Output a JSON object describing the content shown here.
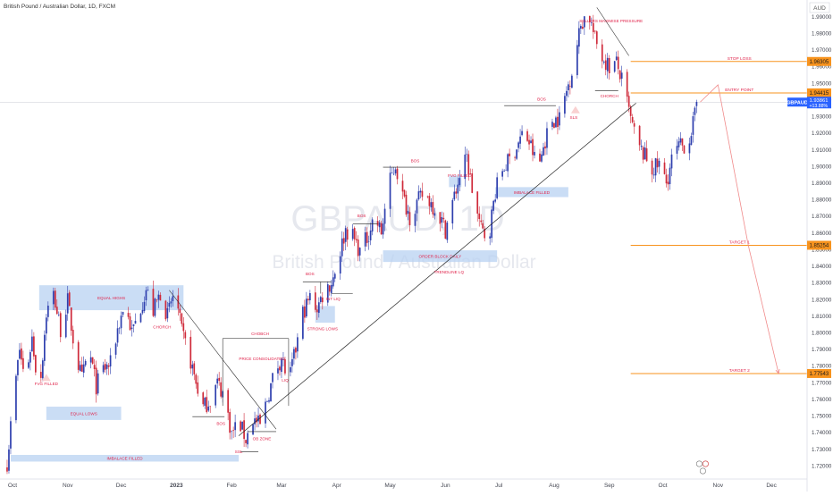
{
  "header": {
    "title": "British Pound / Australian Dollar, 1D, FXCM"
  },
  "watermark": {
    "symbol": "GBPAUD, 1D",
    "name": "British Pound / Australian Dollar"
  },
  "colors": {
    "up": "#2e3fae",
    "down": "#cf2a3a",
    "box": "#b8d2f2",
    "level": "#f7931e",
    "annot": "#e0244b",
    "projection": "#f08a8a",
    "priceTag": "#2962ff"
  },
  "chart_data": {
    "type": "candlestick",
    "title": "British Pound / Australian Dollar, 1D, FXCM",
    "currency": "AUD",
    "ylim": [
      1.712,
      2.0
    ],
    "y_ticks": [
      "1.72000",
      "1.73000",
      "1.74000",
      "1.75000",
      "1.76000",
      "1.77000",
      "1.78000",
      "1.79000",
      "1.80000",
      "1.81000",
      "1.82000",
      "1.83000",
      "1.84000",
      "1.85000",
      "1.86000",
      "1.87000",
      "1.88000",
      "1.89000",
      "1.90000",
      "1.91000",
      "1.92000",
      "1.93000",
      "1.94000",
      "1.95000",
      "1.96000",
      "1.97000",
      "1.98000",
      "1.99000"
    ],
    "x_ticks": [
      "Oct",
      "Nov",
      "Dec",
      "2023",
      "Feb",
      "Mar",
      "Apr",
      "May",
      "Jun",
      "Jul",
      "Aug",
      "Sep",
      "Oct",
      "Nov",
      "Dec"
    ],
    "current_price": {
      "symbol": "GBPAUD",
      "value": "1.93861",
      "change": "+13.88%"
    },
    "price_path": [
      [
        "2022-09-28",
        1.722
      ],
      [
        "2022-10-01",
        1.755
      ],
      [
        "2022-10-05",
        1.79
      ],
      [
        "2022-10-08",
        1.771
      ],
      [
        "2022-10-12",
        1.797
      ],
      [
        "2022-10-16",
        1.762
      ],
      [
        "2022-10-20",
        1.812
      ],
      [
        "2022-10-24",
        1.823
      ],
      [
        "2022-10-28",
        1.802
      ],
      [
        "2022-11-01",
        1.819
      ],
      [
        "2022-11-05",
        1.789
      ],
      [
        "2022-11-09",
        1.772
      ],
      [
        "2022-11-13",
        1.79
      ],
      [
        "2022-11-17",
        1.768
      ],
      [
        "2022-11-21",
        1.778
      ],
      [
        "2022-11-25",
        1.781
      ],
      [
        "2022-11-29",
        1.802
      ],
      [
        "2022-12-03",
        1.818
      ],
      [
        "2022-12-07",
        1.8
      ],
      [
        "2022-12-11",
        1.812
      ],
      [
        "2022-12-15",
        1.826
      ],
      [
        "2022-12-19",
        1.813
      ],
      [
        "2022-12-23",
        1.824
      ],
      [
        "2022-12-27",
        1.81
      ],
      [
        "2022-12-31",
        1.826
      ],
      [
        "2023-01-04",
        1.8
      ],
      [
        "2023-01-08",
        1.787
      ],
      [
        "2023-01-12",
        1.77
      ],
      [
        "2023-01-16",
        1.755
      ],
      [
        "2023-01-20",
        1.76
      ],
      [
        "2023-01-24",
        1.77
      ],
      [
        "2023-01-28",
        1.762
      ],
      [
        "2023-02-01",
        1.739
      ],
      [
        "2023-02-05",
        1.747
      ],
      [
        "2023-02-09",
        1.736
      ],
      [
        "2023-02-13",
        1.748
      ],
      [
        "2023-02-17",
        1.744
      ],
      [
        "2023-02-21",
        1.76
      ],
      [
        "2023-02-25",
        1.776
      ],
      [
        "2023-03-01",
        1.785
      ],
      [
        "2023-03-05",
        1.77
      ],
      [
        "2023-03-09",
        1.79
      ],
      [
        "2023-03-13",
        1.812
      ],
      [
        "2023-03-17",
        1.821
      ],
      [
        "2023-03-21",
        1.815
      ],
      [
        "2023-03-25",
        1.825
      ],
      [
        "2023-03-29",
        1.83
      ],
      [
        "2023-04-02",
        1.845
      ],
      [
        "2023-04-06",
        1.862
      ],
      [
        "2023-04-10",
        1.858
      ],
      [
        "2023-04-14",
        1.849
      ],
      [
        "2023-04-18",
        1.857
      ],
      [
        "2023-04-22",
        1.87
      ],
      [
        "2023-04-26",
        1.86
      ],
      [
        "2023-04-30",
        1.888
      ],
      [
        "2023-05-04",
        1.901
      ],
      [
        "2023-05-08",
        1.882
      ],
      [
        "2023-05-12",
        1.87
      ],
      [
        "2023-05-16",
        1.878
      ],
      [
        "2023-05-20",
        1.884
      ],
      [
        "2023-05-24",
        1.878
      ],
      [
        "2023-05-28",
        1.872
      ],
      [
        "2023-06-01",
        1.862
      ],
      [
        "2023-06-05",
        1.878
      ],
      [
        "2023-06-09",
        1.894
      ],
      [
        "2023-06-13",
        1.905
      ],
      [
        "2023-06-17",
        1.88
      ],
      [
        "2023-06-21",
        1.862
      ],
      [
        "2023-06-25",
        1.856
      ],
      [
        "2023-06-29",
        1.885
      ],
      [
        "2023-07-03",
        1.898
      ],
      [
        "2023-07-07",
        1.904
      ],
      [
        "2023-07-11",
        1.912
      ],
      [
        "2023-07-15",
        1.921
      ],
      [
        "2023-07-19",
        1.912
      ],
      [
        "2023-07-23",
        1.898
      ],
      [
        "2023-07-27",
        1.916
      ],
      [
        "2023-07-31",
        1.928
      ],
      [
        "2023-08-04",
        1.929
      ],
      [
        "2023-08-08",
        1.945
      ],
      [
        "2023-08-12",
        1.962
      ],
      [
        "2023-08-16",
        1.985
      ],
      [
        "2023-08-20",
        1.994
      ],
      [
        "2023-08-24",
        1.976
      ],
      [
        "2023-08-28",
        1.966
      ],
      [
        "2023-09-01",
        1.96
      ],
      [
        "2023-09-05",
        1.962
      ],
      [
        "2023-09-09",
        1.948
      ],
      [
        "2023-09-13",
        1.928
      ],
      [
        "2023-09-17",
        1.912
      ],
      [
        "2023-09-21",
        1.906
      ],
      [
        "2023-09-25",
        1.898
      ],
      [
        "2023-09-29",
        1.901
      ],
      [
        "2023-10-03",
        1.89
      ],
      [
        "2023-10-07",
        1.908
      ],
      [
        "2023-10-11",
        1.912
      ],
      [
        "2023-10-15",
        1.913
      ],
      [
        "2023-10-19",
        1.93
      ],
      [
        "2023-10-20",
        1.93861
      ]
    ],
    "levels": [
      {
        "name": "STOP LOSS",
        "value": "1.96305",
        "y": 1.96305
      },
      {
        "name": "ENTRY POINT",
        "value": "1.94415",
        "y": 1.94415
      },
      {
        "name": "TARGET 1",
        "value": "1.85254",
        "y": 1.85254
      },
      {
        "name": "TARGET 2",
        "value": "1.77543",
        "y": 1.77543
      }
    ],
    "projection": [
      [
        "2023-10-22",
        1.93861
      ],
      [
        "2023-11-01",
        1.949
      ],
      [
        "2023-11-18",
        1.85254
      ],
      [
        "2023-12-05",
        1.77543
      ]
    ],
    "trendline": [
      [
        "2023-02-05",
        1.738
      ],
      [
        "2023-09-16",
        1.938
      ]
    ],
    "boxes": [
      {
        "label": "EQUAL HIGHS",
        "x0": "2022-10-16",
        "x1": "2023-01-05",
        "y0": 1.8135,
        "y1": 1.8285
      },
      {
        "label": "EQUAL LOWS",
        "x0": "2022-10-20",
        "x1": "2022-12-01",
        "y0": 1.7475,
        "y1": 1.7555
      },
      {
        "label": "IMBALACE FILLED",
        "x0": "2022-09-30",
        "x1": "2023-02-05",
        "y0": 1.7225,
        "y1": 1.7265
      },
      {
        "label": "",
        "x0": "2023-03-20",
        "x1": "2023-03-31",
        "y0": 1.806,
        "y1": 1.816
      },
      {
        "label": "ORDER BLOCK DAILY",
        "x0": "2023-04-27",
        "x1": "2023-06-30",
        "y0": 1.8425,
        "y1": 1.8495
      },
      {
        "label": "",
        "x0": "2023-06-03",
        "x1": "2023-06-10",
        "y0": 1.8875,
        "y1": 1.8945
      },
      {
        "label": "IMBALACE FILLED",
        "x0": "2023-06-29",
        "x1": "2023-08-09",
        "y0": 1.8815,
        "y1": 1.8875
      }
    ],
    "annotations": [
      {
        "text": "FVG FILLED",
        "date": "2022-10-20",
        "y": 1.7685
      },
      {
        "text": "CHORCH",
        "date": "2022-12-24",
        "y": 1.8025
      },
      {
        "text": "CHOBCH",
        "date": "2023-02-17",
        "y": 1.7985
      },
      {
        "text": "PRICE CONSOLIDATED",
        "date": "2023-02-18",
        "y": 1.7835
      },
      {
        "text": "BOS",
        "date": "2023-01-26",
        "y": 1.7445
      },
      {
        "text": "SSL",
        "date": "2023-02-05",
        "y": 1.7275
      },
      {
        "text": "OB ZONE",
        "date": "2023-02-18",
        "y": 1.7355
      },
      {
        "text": "LIQ",
        "date": "2023-03-03",
        "y": 1.7705
      },
      {
        "text": "BOS",
        "date": "2023-03-17",
        "y": 1.8345
      },
      {
        "text": "INT LIQ",
        "date": "2023-03-30",
        "y": 1.8195
      },
      {
        "text": "STRONG LOWS",
        "date": "2023-03-24",
        "y": 1.8015
      },
      {
        "text": "BOS",
        "date": "2023-04-15",
        "y": 1.8695
      },
      {
        "text": "BOS",
        "date": "2023-05-15",
        "y": 1.9025
      },
      {
        "text": "FVG FILLED",
        "date": "2023-06-09",
        "y": 1.8935
      },
      {
        "text": "TRENDLINE LQ",
        "date": "2023-06-03",
        "y": 1.8355
      },
      {
        "text": "BOS",
        "date": "2023-07-25",
        "y": 1.9395
      },
      {
        "text": "SLS",
        "date": "2023-08-12",
        "y": 1.9285
      },
      {
        "text": "SELLERS MAXIMISE PRESSURE",
        "date": "2023-09-02",
        "y": 1.9865
      },
      {
        "text": "CHORCH",
        "date": "2023-09-01",
        "y": 1.9415
      }
    ]
  }
}
